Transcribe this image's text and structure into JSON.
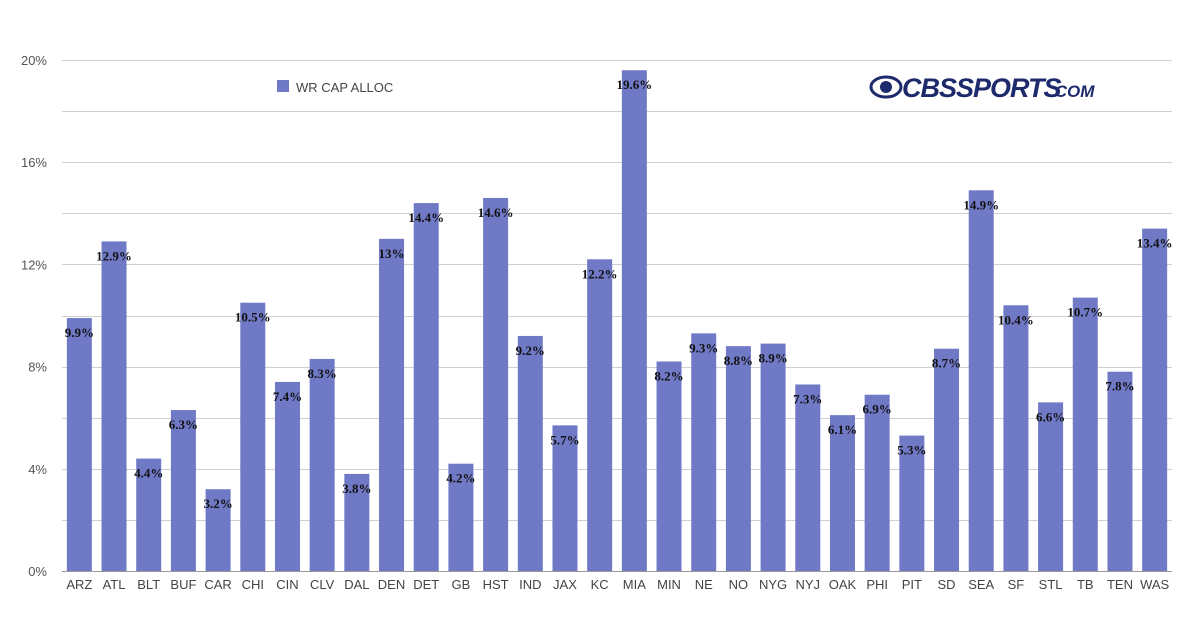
{
  "colors": {
    "bar": "#7079c6",
    "grid": "#cfcfcf",
    "axis": "#999999"
  },
  "logo": {
    "text": "CBSSPORTS",
    "suffix": ".COM"
  },
  "chart_data": {
    "type": "bar",
    "title": "",
    "xlabel": "",
    "ylabel": "",
    "ylim": [
      0,
      20
    ],
    "yticks": [
      0,
      4,
      8,
      12,
      16,
      20
    ],
    "ytick_labels": [
      "0%",
      "4%",
      "8%",
      "12%",
      "16%",
      "20%"
    ],
    "grid": true,
    "legend_position": "top-left",
    "series": [
      {
        "name": "WR CAP ALLOC",
        "values": [
          9.9,
          12.9,
          4.4,
          6.3,
          3.2,
          10.5,
          7.4,
          8.3,
          3.8,
          13,
          14.4,
          4.2,
          14.6,
          9.2,
          5.7,
          12.2,
          19.6,
          8.2,
          9.3,
          8.8,
          8.9,
          7.3,
          6.1,
          6.9,
          5.3,
          8.7,
          14.9,
          10.4,
          6.6,
          10.7,
          7.8,
          13.4
        ],
        "labels": [
          "9.9%",
          "12.9%",
          "4.4%",
          "6.3%",
          "3.2%",
          "10.5%",
          "7.4%",
          "8.3%",
          "3.8%",
          "13%",
          "14.4%",
          "4.2%",
          "14.6%",
          "9.2%",
          "5.7%",
          "12.2%",
          "19.6%",
          "8.2%",
          "9.3%",
          "8.8%",
          "8.9%",
          "7.3%",
          "6.1%",
          "6.9%",
          "5.3%",
          "8.7%",
          "14.9%",
          "10.4%",
          "6.6%",
          "10.7%",
          "7.8%",
          "13.4%"
        ]
      }
    ],
    "categories": [
      "ARZ",
      "ATL",
      "BLT",
      "BUF",
      "CAR",
      "CHI",
      "CIN",
      "CLV",
      "DAL",
      "DEN",
      "DET",
      "GB",
      "HST",
      "IND",
      "JAX",
      "KC",
      "MIA",
      "MIN",
      "NE",
      "NO",
      "NYG",
      "NYJ",
      "OAK",
      "PHI",
      "PIT",
      "SD",
      "SEA",
      "SF",
      "STL",
      "TB",
      "TEN",
      "WAS"
    ]
  }
}
